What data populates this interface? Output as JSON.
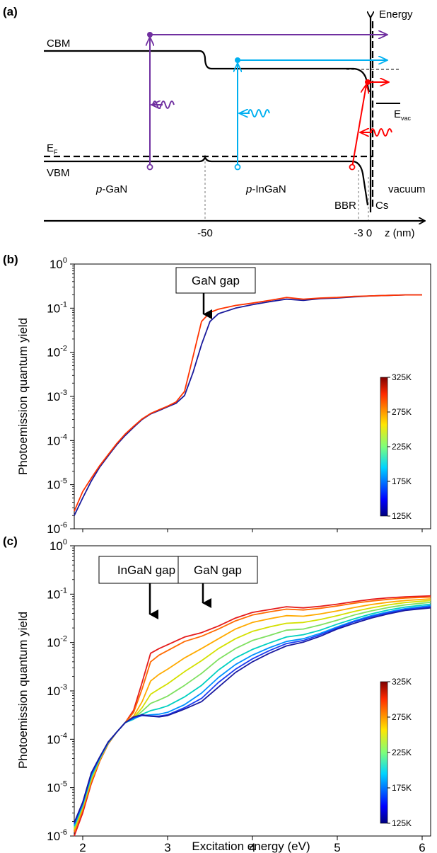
{
  "panel_a": {
    "label": "(a)",
    "energy_label": "Energy",
    "cbm": "CBM",
    "ef": "E",
    "ef_sub": "F",
    "vbm": "VBM",
    "evac": "E",
    "evac_sub": "vac",
    "pgan_italic": "p",
    "pgan_rest": "-GaN",
    "pingan_italic": "p",
    "pingan_rest": "-InGaN",
    "vacuum": "vacuum",
    "bbr": "BBR",
    "cs": "Cs",
    "tick_m50": "-50",
    "tick_m3": "-3",
    "tick_0": "0",
    "z_axis": "z (nm)",
    "colors": {
      "purple": "#7030a0",
      "cyan": "#00b0f0",
      "red": "#ff0000"
    }
  },
  "panel_b": {
    "label": "(b)",
    "ylabel": "Photoemission quantum yield",
    "annotation": "GaN gap",
    "colorbar": {
      "min_label": "125K",
      "ticks": [
        "325K",
        "275K",
        "225K",
        "175K",
        "125K"
      ]
    },
    "yticks": [
      {
        "base": "10",
        "exp": "0"
      },
      {
        "base": "10",
        "exp": "-1"
      },
      {
        "base": "10",
        "exp": "-2"
      },
      {
        "base": "10",
        "exp": "-3"
      },
      {
        "base": "10",
        "exp": "-4"
      },
      {
        "base": "10",
        "exp": "-5"
      },
      {
        "base": "10",
        "exp": "-6"
      }
    ]
  },
  "panel_c": {
    "label": "(c)",
    "ylabel": "Photoemission quantum yield",
    "xlabel": "Excitation energy (eV)",
    "annotation_ingan": "InGaN gap",
    "annotation_gan": "GaN gap",
    "colorbar": {
      "ticks": [
        "325K",
        "275K",
        "225K",
        "175K",
        "125K"
      ]
    },
    "xticks": [
      "2",
      "3",
      "4",
      "5",
      "6"
    ],
    "yticks": [
      {
        "base": "10",
        "exp": "0"
      },
      {
        "base": "10",
        "exp": "-1"
      },
      {
        "base": "10",
        "exp": "-2"
      },
      {
        "base": "10",
        "exp": "-3"
      },
      {
        "base": "10",
        "exp": "-4"
      },
      {
        "base": "10",
        "exp": "-5"
      },
      {
        "base": "10",
        "exp": "-6"
      }
    ]
  },
  "chart_data": [
    {
      "type": "line",
      "panel": "b",
      "yscale": "log",
      "xlim": [
        1.9,
        6.1
      ],
      "ylim": [
        1e-06,
        1
      ],
      "ylabel": "Photoemission quantum yield",
      "x": [
        1.9,
        2.0,
        2.1,
        2.2,
        2.3,
        2.4,
        2.5,
        2.6,
        2.7,
        2.8,
        2.9,
        3.0,
        3.1,
        3.2,
        3.3,
        3.4,
        3.5,
        3.6,
        3.8,
        4.0,
        4.2,
        4.4,
        4.6,
        4.8,
        5.0,
        5.2,
        5.4,
        5.6,
        5.8,
        6.0
      ],
      "series": [
        {
          "name": "125K",
          "color": "#1a1a9c",
          "values": [
            2e-06,
            5e-06,
            1.2e-05,
            2.5e-05,
            4.5e-05,
            8e-05,
            0.00013,
            0.0002,
            0.0003,
            0.0004,
            0.00048,
            0.00058,
            0.0007,
            0.00105,
            0.0035,
            0.015,
            0.05,
            0.075,
            0.1,
            0.12,
            0.14,
            0.16,
            0.15,
            0.165,
            0.17,
            0.18,
            0.19,
            0.195,
            0.2,
            0.2
          ]
        },
        {
          "name": "325K",
          "color": "#ff3300",
          "values": [
            2.5e-06,
            7e-06,
            1.4e-05,
            2.7e-05,
            4.8e-05,
            8.5e-05,
            0.00014,
            0.00021,
            0.00031,
            0.00041,
            0.0005,
            0.0006,
            0.00075,
            0.0013,
            0.008,
            0.05,
            0.08,
            0.095,
            0.115,
            0.13,
            0.15,
            0.175,
            0.16,
            0.17,
            0.175,
            0.185,
            0.19,
            0.195,
            0.2,
            0.2
          ]
        }
      ]
    },
    {
      "type": "line",
      "panel": "c",
      "yscale": "log",
      "xlim": [
        1.9,
        6.1
      ],
      "ylim": [
        1e-06,
        1
      ],
      "xlabel": "Excitation energy (eV)",
      "ylabel": "Photoemission quantum yield",
      "x": [
        1.9,
        2.0,
        2.1,
        2.2,
        2.3,
        2.4,
        2.5,
        2.6,
        2.7,
        2.8,
        2.9,
        3.0,
        3.2,
        3.4,
        3.6,
        3.8,
        4.0,
        4.2,
        4.4,
        4.6,
        4.8,
        5.0,
        5.2,
        5.4,
        5.6,
        5.8,
        6.1
      ],
      "series": [
        {
          "name": "325K",
          "color": "#e51b1b",
          "values": [
            1e-06,
            3e-06,
            1.2e-05,
            3.5e-05,
            8e-05,
            0.00014,
            0.00022,
            0.0004,
            0.0015,
            0.006,
            0.0075,
            0.009,
            0.013,
            0.016,
            0.022,
            0.032,
            0.042,
            0.048,
            0.055,
            0.052,
            0.056,
            0.062,
            0.07,
            0.078,
            0.084,
            0.088,
            0.092
          ]
        },
        {
          "name": "300K",
          "color": "#ff6a00",
          "values": [
            1.2e-06,
            3.5e-06,
            1.3e-05,
            3.6e-05,
            8.1e-05,
            0.00014,
            0.00022,
            0.00036,
            0.0011,
            0.004,
            0.0055,
            0.0068,
            0.0105,
            0.0135,
            0.019,
            0.028,
            0.037,
            0.043,
            0.049,
            0.047,
            0.051,
            0.057,
            0.065,
            0.072,
            0.078,
            0.083,
            0.087
          ]
        },
        {
          "name": "275K",
          "color": "#ffaa00",
          "values": [
            1.3e-06,
            3.8e-06,
            1.4e-05,
            3.7e-05,
            8.2e-05,
            0.00014,
            0.00022,
            0.0003,
            0.0006,
            0.0016,
            0.0022,
            0.0028,
            0.0048,
            0.0075,
            0.012,
            0.019,
            0.026,
            0.031,
            0.036,
            0.035,
            0.039,
            0.045,
            0.053,
            0.061,
            0.068,
            0.074,
            0.08
          ]
        },
        {
          "name": "250K",
          "color": "#d4e000",
          "values": [
            1.4e-06,
            4e-06,
            1.5e-05,
            3.8e-05,
            8.3e-05,
            0.00014,
            0.00022,
            0.00028,
            0.00045,
            0.00085,
            0.0011,
            0.0014,
            0.0025,
            0.0042,
            0.0075,
            0.012,
            0.017,
            0.021,
            0.025,
            0.026,
            0.03,
            0.036,
            0.044,
            0.052,
            0.06,
            0.067,
            0.074
          ]
        },
        {
          "name": "225K",
          "color": "#7fe060",
          "values": [
            1.5e-06,
            4.2e-06,
            1.6e-05,
            3.9e-05,
            8.4e-05,
            0.00014,
            0.00022,
            0.00027,
            0.00038,
            0.00055,
            0.00065,
            0.00078,
            0.0013,
            0.0023,
            0.0045,
            0.0075,
            0.011,
            0.014,
            0.018,
            0.019,
            0.023,
            0.029,
            0.037,
            0.045,
            0.053,
            0.06,
            0.068
          ]
        },
        {
          "name": "200K",
          "color": "#00d0c0",
          "values": [
            1.6e-06,
            4.4e-06,
            1.7e-05,
            4e-05,
            8.5e-05,
            0.00014,
            0.00022,
            0.00026,
            0.00033,
            0.00039,
            0.00043,
            0.00049,
            0.00075,
            0.0013,
            0.0027,
            0.0048,
            0.0072,
            0.0098,
            0.013,
            0.0145,
            0.018,
            0.024,
            0.031,
            0.039,
            0.047,
            0.054,
            0.062
          ]
        },
        {
          "name": "175K",
          "color": "#0090ff",
          "values": [
            1.7e-06,
            4.6e-06,
            1.8e-05,
            4.1e-05,
            8.6e-05,
            0.00014,
            0.00022,
            0.00027,
            0.00031,
            0.00032,
            0.00033,
            0.00036,
            0.00052,
            0.0009,
            0.0019,
            0.0035,
            0.0055,
            0.0078,
            0.0105,
            0.012,
            0.0155,
            0.021,
            0.028,
            0.036,
            0.043,
            0.05,
            0.058
          ]
        },
        {
          "name": "150K",
          "color": "#1c3cf0",
          "values": [
            1.8e-06,
            4.8e-06,
            1.9e-05,
            4.2e-05,
            8.7e-05,
            0.00014,
            0.00022,
            0.00028,
            0.00031,
            0.0003,
            0.0003,
            0.00032,
            0.00045,
            0.0007,
            0.0015,
            0.0028,
            0.0046,
            0.0068,
            0.0095,
            0.011,
            0.0145,
            0.02,
            0.027,
            0.034,
            0.041,
            0.048,
            0.055
          ]
        },
        {
          "name": "125K",
          "color": "#1a1aa0",
          "values": [
            1.9e-06,
            5e-06,
            2e-05,
            4.3e-05,
            8.8e-05,
            0.00014,
            0.00022,
            0.00029,
            0.00032,
            0.0003,
            0.00029,
            0.00031,
            0.00042,
            0.0006,
            0.0012,
            0.0024,
            0.004,
            0.006,
            0.0085,
            0.0102,
            0.0135,
            0.019,
            0.025,
            0.032,
            0.039,
            0.046,
            0.052
          ]
        }
      ]
    }
  ]
}
